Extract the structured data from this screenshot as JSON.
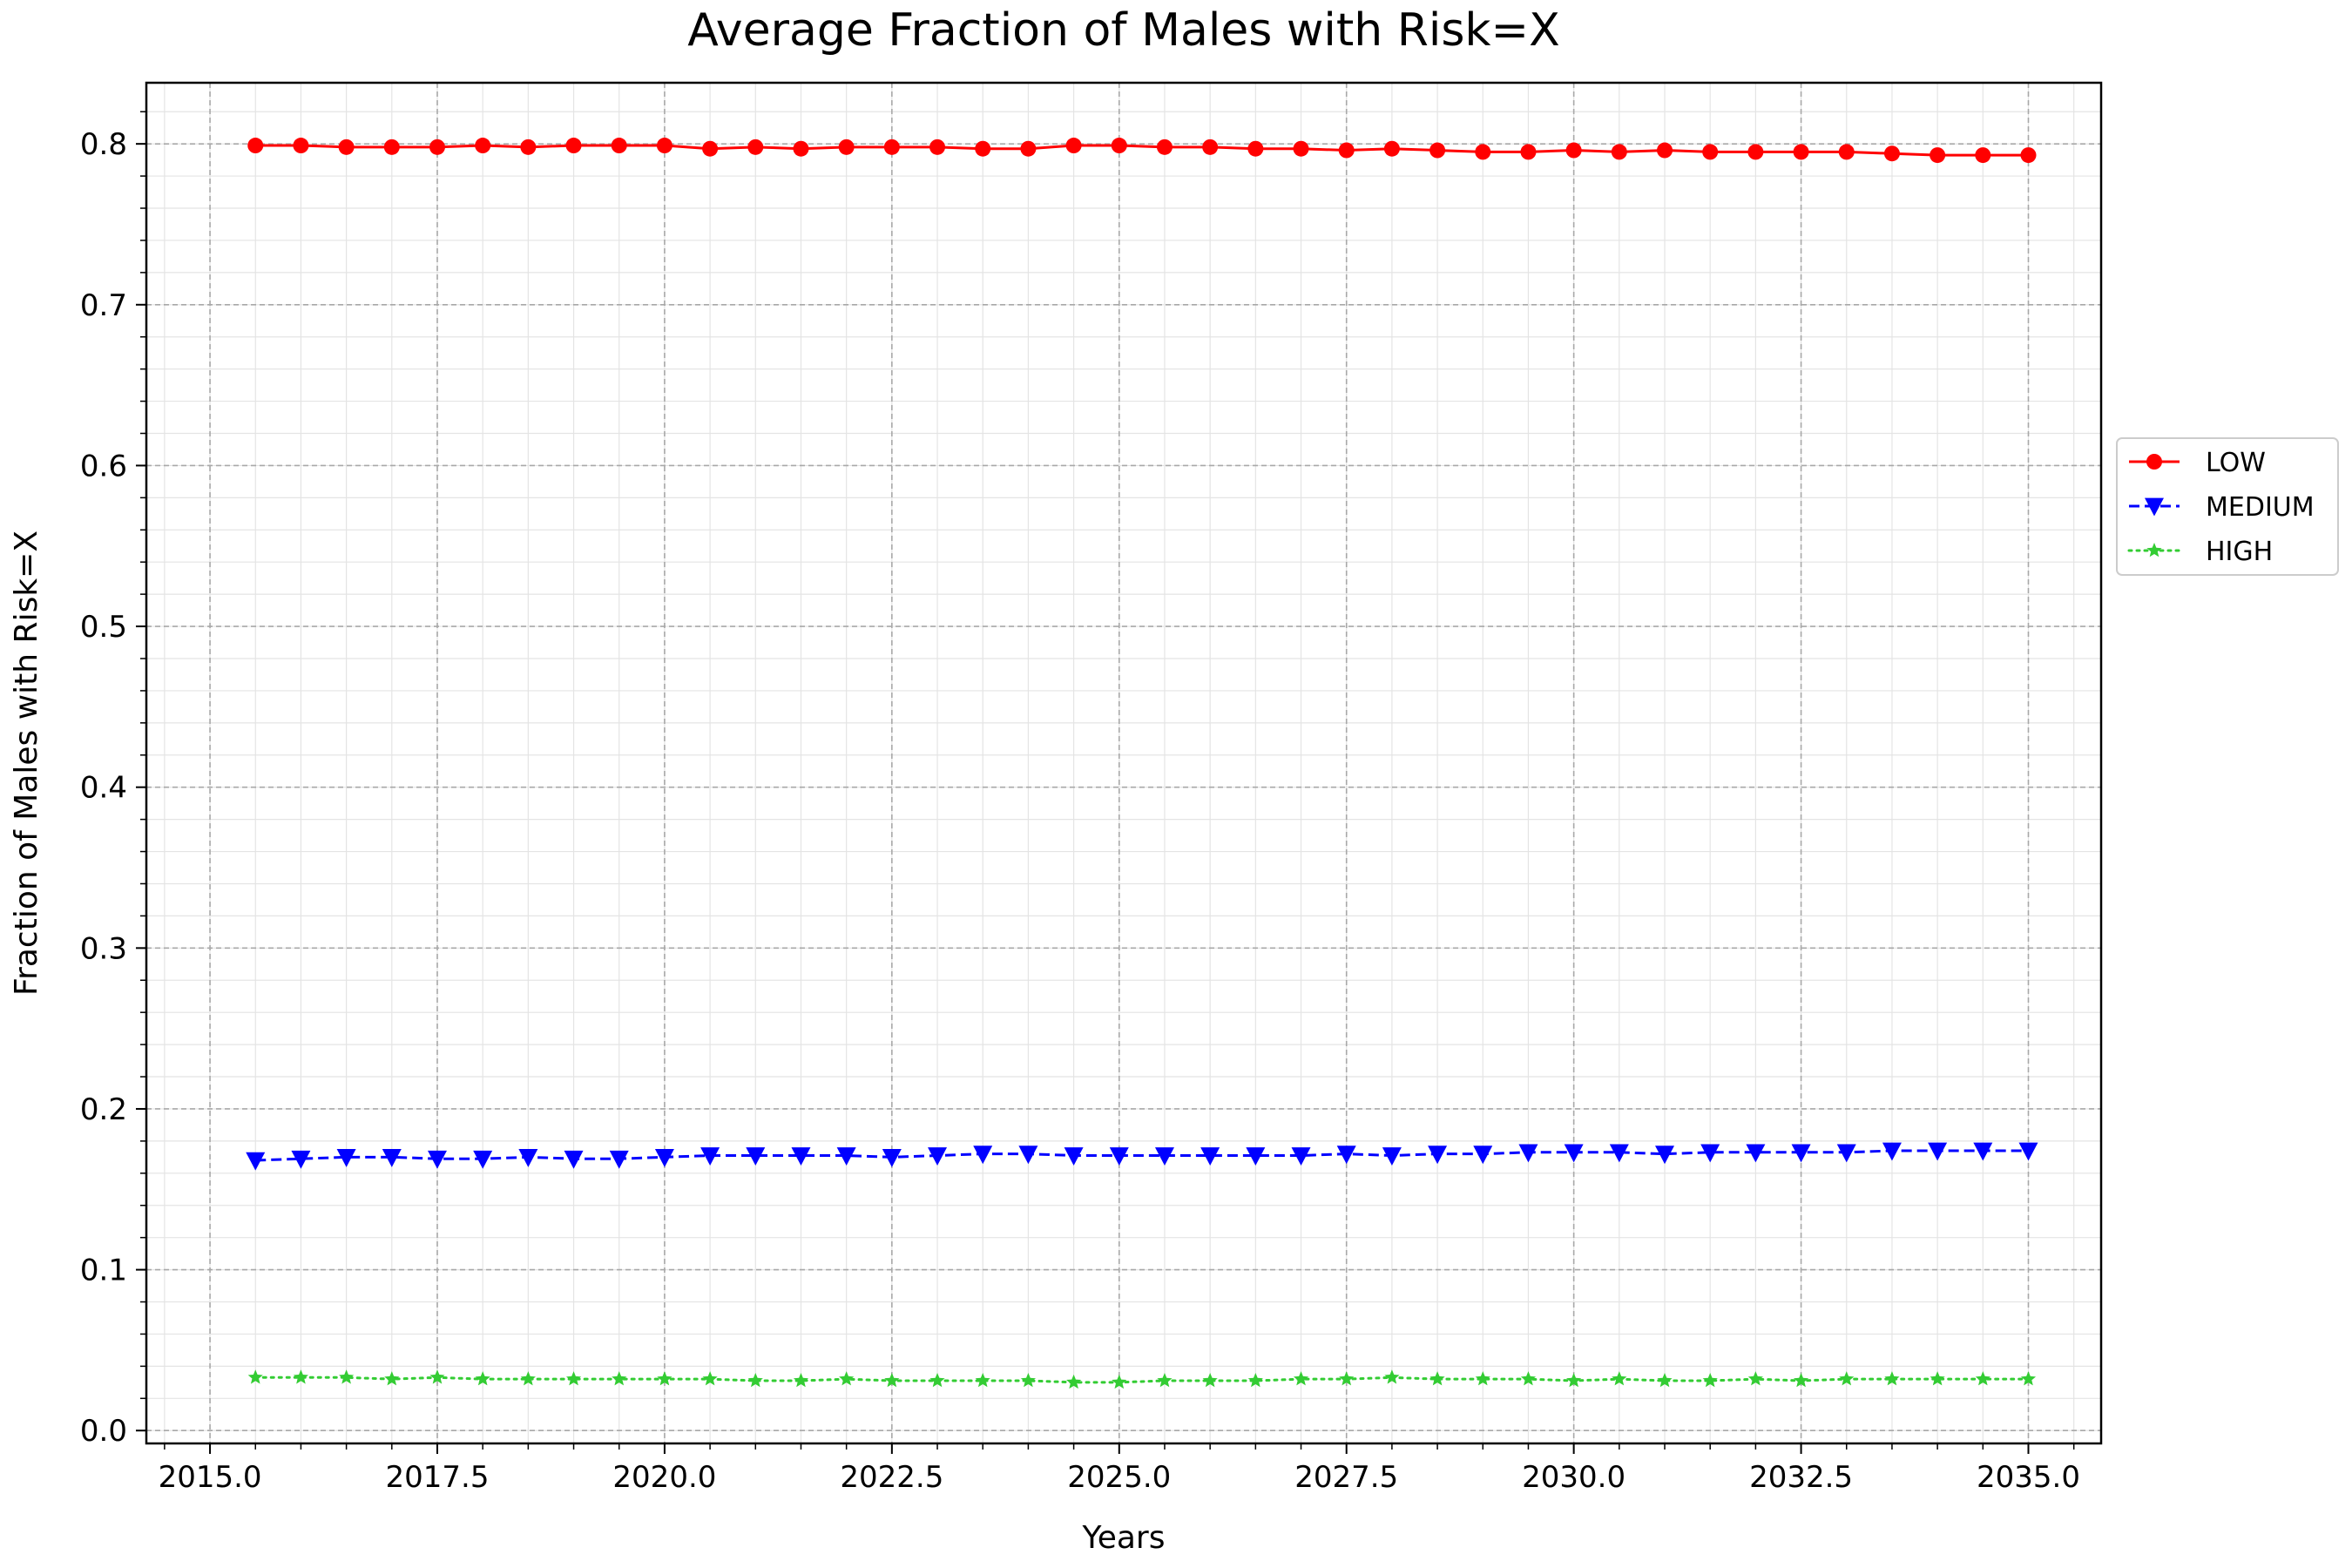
{
  "chart_data": {
    "type": "line",
    "title": "Average Fraction of Males with Risk=X",
    "xlabel": "Years",
    "ylabel": "Fraction of Males with Risk=X",
    "xlim": [
      2014.3,
      2035.8
    ],
    "ylim": [
      -0.008,
      0.838
    ],
    "x_ticks": [
      2015.0,
      2017.5,
      2020.0,
      2022.5,
      2025.0,
      2027.5,
      2030.0,
      2032.5,
      2035.0
    ],
    "x_tick_labels": [
      "2015.0",
      "2017.5",
      "2020.0",
      "2022.5",
      "2025.0",
      "2027.5",
      "2030.0",
      "2032.5",
      "2035.0"
    ],
    "y_ticks": [
      0.0,
      0.1,
      0.2,
      0.3,
      0.4,
      0.5,
      0.6,
      0.7,
      0.8
    ],
    "y_tick_labels": [
      "0.0",
      "0.1",
      "0.2",
      "0.3",
      "0.4",
      "0.5",
      "0.6",
      "0.7",
      "0.8"
    ],
    "grid": "major dashed, minor solid",
    "legend_position": "outside right, center",
    "x": [
      2015.5,
      2016.0,
      2016.5,
      2017.0,
      2017.5,
      2018.0,
      2018.5,
      2019.0,
      2019.5,
      2020.0,
      2020.5,
      2021.0,
      2021.5,
      2022.0,
      2022.5,
      2023.0,
      2023.5,
      2024.0,
      2024.5,
      2025.0,
      2025.5,
      2026.0,
      2026.5,
      2027.0,
      2027.5,
      2028.0,
      2028.5,
      2029.0,
      2029.5,
      2030.0,
      2030.5,
      2031.0,
      2031.5,
      2032.0,
      2032.5,
      2033.0,
      2033.5,
      2034.0,
      2034.5,
      2035.0
    ],
    "series": [
      {
        "name": "LOW",
        "color": "#ff0000",
        "line_style": "solid",
        "marker": "circle",
        "values": [
          0.799,
          0.799,
          0.798,
          0.798,
          0.798,
          0.799,
          0.798,
          0.799,
          0.799,
          0.799,
          0.797,
          0.798,
          0.797,
          0.798,
          0.798,
          0.798,
          0.797,
          0.797,
          0.799,
          0.799,
          0.798,
          0.798,
          0.797,
          0.797,
          0.796,
          0.797,
          0.796,
          0.795,
          0.795,
          0.796,
          0.795,
          0.796,
          0.795,
          0.795,
          0.795,
          0.795,
          0.794,
          0.793,
          0.793,
          0.793
        ]
      },
      {
        "name": "MEDIUM",
        "color": "#0000ff",
        "line_style": "dashed",
        "marker": "triangle-down",
        "values": [
          0.168,
          0.169,
          0.17,
          0.17,
          0.169,
          0.169,
          0.17,
          0.169,
          0.169,
          0.17,
          0.171,
          0.171,
          0.171,
          0.171,
          0.17,
          0.171,
          0.172,
          0.172,
          0.171,
          0.171,
          0.171,
          0.171,
          0.171,
          0.171,
          0.172,
          0.171,
          0.172,
          0.172,
          0.173,
          0.173,
          0.173,
          0.172,
          0.173,
          0.173,
          0.173,
          0.173,
          0.174,
          0.174,
          0.174,
          0.174
        ]
      },
      {
        "name": "HIGH",
        "color": "#33cc33",
        "line_style": "dotted",
        "marker": "star",
        "values": [
          0.033,
          0.033,
          0.033,
          0.032,
          0.033,
          0.032,
          0.032,
          0.032,
          0.032,
          0.032,
          0.032,
          0.031,
          0.031,
          0.032,
          0.031,
          0.031,
          0.031,
          0.031,
          0.03,
          0.03,
          0.031,
          0.031,
          0.031,
          0.032,
          0.032,
          0.033,
          0.032,
          0.032,
          0.032,
          0.031,
          0.032,
          0.031,
          0.031,
          0.032,
          0.031,
          0.032,
          0.032,
          0.032,
          0.032,
          0.032
        ]
      }
    ]
  }
}
